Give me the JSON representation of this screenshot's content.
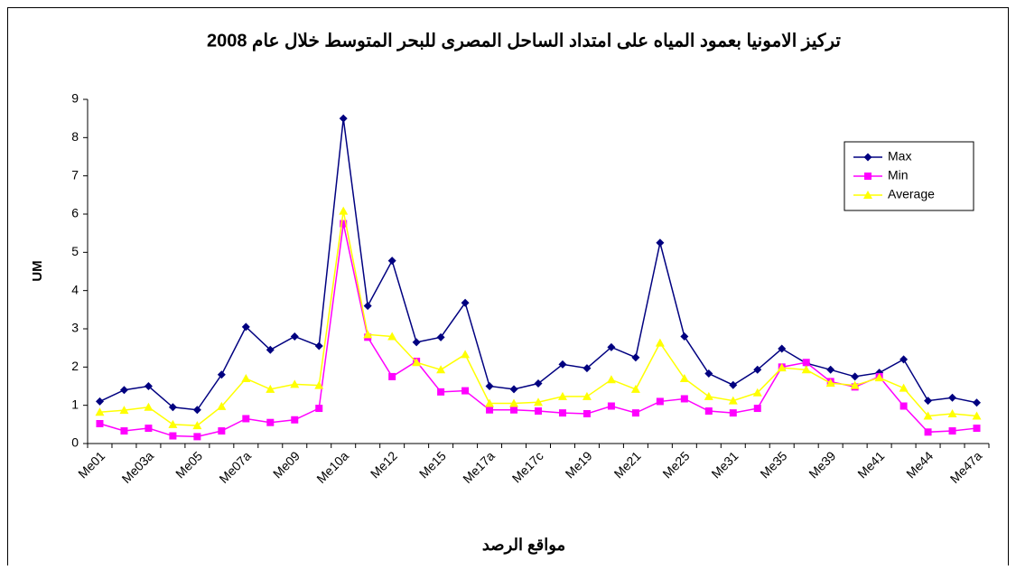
{
  "chart_data": {
    "type": "line",
    "title": "تركيز الامونيا بعمود المياه على امتداد الساحل المصرى للبحر المتوسط خلال عام 2008",
    "x_label": "مواقع الرصد",
    "y_label": "UM",
    "categories": [
      "Me01",
      null,
      "Me03a",
      null,
      "Me05",
      null,
      "Me07a",
      null,
      "Me09",
      null,
      "Me10a",
      null,
      "Me12",
      null,
      "Me15",
      null,
      "Me17a",
      null,
      "Me17c",
      null,
      "Me19",
      null,
      "Me21",
      null,
      "Me25",
      null,
      "Me31",
      null,
      "Me35",
      null,
      "Me39",
      null,
      "Me41",
      null,
      "Me44",
      null,
      "Me47a"
    ],
    "series": [
      {
        "name": "Max",
        "color": "#000080",
        "marker": "diamond",
        "values": [
          1.1,
          1.4,
          1.5,
          0.95,
          0.88,
          1.8,
          3.05,
          2.45,
          2.8,
          2.55,
          8.5,
          3.6,
          4.78,
          2.65,
          2.78,
          3.68,
          1.5,
          1.42,
          1.57,
          2.07,
          1.97,
          2.52,
          2.25,
          5.25,
          2.8,
          1.83,
          1.53,
          1.93,
          2.48,
          2.1,
          1.93,
          1.75,
          1.85,
          2.2,
          1.12,
          1.2,
          1.07
        ]
      },
      {
        "name": "Min",
        "color": "#ff00ff",
        "marker": "square",
        "values": [
          0.52,
          0.33,
          0.4,
          0.2,
          0.18,
          0.33,
          0.65,
          0.55,
          0.62,
          0.92,
          5.75,
          2.78,
          1.75,
          2.15,
          1.35,
          1.38,
          0.88,
          0.88,
          0.85,
          0.8,
          0.78,
          0.98,
          0.8,
          1.1,
          1.17,
          0.85,
          0.8,
          0.92,
          2.0,
          2.12,
          1.62,
          1.48,
          1.75,
          0.98,
          0.3,
          0.33,
          0.4
        ]
      },
      {
        "name": "Average",
        "color": "#ffff00",
        "marker": "triangle",
        "values": [
          0.82,
          0.87,
          0.95,
          0.5,
          0.47,
          0.97,
          1.7,
          1.42,
          1.55,
          1.52,
          6.08,
          2.85,
          2.8,
          2.12,
          1.93,
          2.33,
          1.05,
          1.05,
          1.08,
          1.23,
          1.23,
          1.67,
          1.42,
          2.63,
          1.7,
          1.23,
          1.12,
          1.33,
          1.98,
          1.93,
          1.58,
          1.52,
          1.72,
          1.45,
          0.72,
          0.78,
          0.72
        ]
      }
    ],
    "ylim": [
      0,
      9
    ],
    "yticks": [
      0,
      1,
      2,
      3,
      4,
      5,
      6,
      7,
      8,
      9
    ],
    "grid": false,
    "legend": "upper right"
  }
}
